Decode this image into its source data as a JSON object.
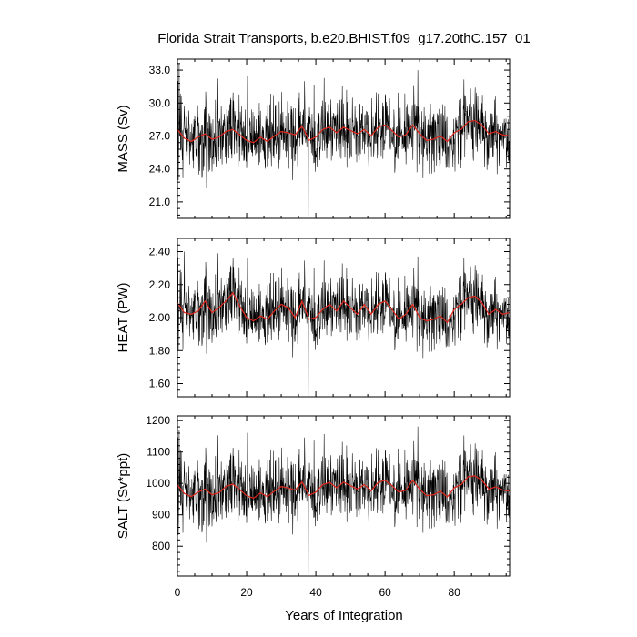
{
  "figure": {
    "title": "Florida Strait Transports, b.e20.BHIST.f09_g17.20thC.157_01",
    "xlabel": "Years of Integration"
  },
  "colors": {
    "raw_series": "#000000",
    "smoothed_series": "#e0271c",
    "frame": "#000000",
    "background": "#ffffff"
  },
  "chart_data": [
    {
      "type": "line",
      "ylabel": "MASS (Sv)",
      "xlim": [
        0,
        96
      ],
      "ylim": [
        19.5,
        34.0
      ],
      "xticks": [
        0,
        20,
        40,
        60,
        80
      ],
      "xtick_labels": [
        "",
        "",
        "",
        "",
        ""
      ],
      "yticks": [
        21.0,
        24.0,
        27.0,
        30.0,
        33.0
      ],
      "ytick_labels": [
        "21.0",
        "24.0",
        "27.0",
        "30.0",
        "33.0"
      ],
      "grid": false,
      "series": [
        {
          "style": "raw-monthly",
          "x_start": 0,
          "x_step": 0.0833,
          "n": 1152,
          "mean": 27.0,
          "stdev": 1.6,
          "minimum": {
            "x": 37.8,
            "y": 19.7
          },
          "maximum": {
            "x": 0.5,
            "y": 33.6
          }
        },
        {
          "style": "smoothed",
          "x": [
            0,
            2,
            4,
            6,
            8,
            10,
            12,
            14,
            16,
            18,
            20,
            22,
            24,
            26,
            28,
            30,
            32,
            34,
            36,
            38,
            40,
            42,
            44,
            46,
            48,
            50,
            52,
            54,
            56,
            58,
            60,
            62,
            64,
            66,
            68,
            70,
            72,
            74,
            76,
            78,
            80,
            82,
            84,
            86,
            88,
            90,
            92,
            94,
            96
          ],
          "y": [
            27.6,
            26.8,
            26.5,
            26.9,
            27.2,
            26.7,
            26.9,
            27.4,
            27.6,
            27.1,
            26.6,
            26.4,
            26.9,
            26.5,
            27.0,
            27.4,
            27.3,
            27.1,
            27.9,
            26.6,
            26.9,
            27.6,
            27.8,
            27.3,
            27.8,
            27.5,
            27.2,
            27.6,
            27.0,
            27.8,
            28.0,
            27.5,
            26.9,
            27.1,
            28.0,
            27.2,
            26.6,
            26.7,
            27.0,
            26.5,
            27.3,
            27.6,
            28.3,
            28.4,
            28.0,
            27.2,
            27.4,
            27.1,
            27.0
          ]
        }
      ]
    },
    {
      "type": "line",
      "ylabel": "HEAT (PW)",
      "xlim": [
        0,
        96
      ],
      "ylim": [
        1.52,
        2.48
      ],
      "xticks": [
        0,
        20,
        40,
        60,
        80
      ],
      "xtick_labels": [
        "",
        "",
        "",
        "",
        ""
      ],
      "yticks": [
        1.6,
        1.8,
        2.0,
        2.2,
        2.4
      ],
      "ytick_labels": [
        "1.60",
        "1.80",
        "2.00",
        "2.20",
        "2.40"
      ],
      "grid": false,
      "series": [
        {
          "style": "raw-monthly",
          "x_start": 0,
          "x_step": 0.0833,
          "n": 1152,
          "mean": 2.04,
          "stdev": 0.1,
          "minimum": {
            "x": 37.8,
            "y": 1.53
          },
          "maximum": {
            "x": 2.0,
            "y": 2.4
          }
        },
        {
          "style": "smoothed",
          "x": [
            0,
            2,
            4,
            6,
            8,
            10,
            12,
            14,
            16,
            18,
            20,
            22,
            24,
            26,
            28,
            30,
            32,
            34,
            36,
            38,
            40,
            42,
            44,
            46,
            48,
            50,
            52,
            54,
            56,
            58,
            60,
            62,
            64,
            66,
            68,
            70,
            72,
            74,
            76,
            78,
            80,
            82,
            84,
            86,
            88,
            90,
            92,
            94,
            96
          ],
          "y": [
            2.09,
            2.03,
            2.02,
            2.04,
            2.1,
            2.03,
            2.06,
            2.1,
            2.15,
            2.07,
            2.0,
            1.98,
            2.01,
            1.99,
            2.04,
            2.08,
            2.06,
            2.0,
            2.1,
            1.99,
            2.0,
            2.05,
            2.08,
            2.04,
            2.1,
            2.06,
            2.02,
            2.08,
            2.02,
            2.08,
            2.1,
            2.05,
            1.99,
            2.02,
            2.08,
            2.0,
            1.98,
            1.99,
            2.01,
            1.97,
            2.05,
            2.08,
            2.12,
            2.13,
            2.09,
            2.02,
            2.05,
            2.02,
            2.03
          ]
        }
      ]
    },
    {
      "type": "line",
      "ylabel": "SALT (Sv*ppt)",
      "xlim": [
        0,
        96
      ],
      "ylim": [
        705,
        1215
      ],
      "xticks": [
        0,
        20,
        40,
        60,
        80
      ],
      "xtick_labels": [
        "0",
        "20",
        "40",
        "60",
        "80"
      ],
      "yticks": [
        800,
        900,
        1000,
        1100,
        1200
      ],
      "ytick_labels": [
        "800",
        "900",
        "1000",
        "1100",
        "1200"
      ],
      "grid": false,
      "series": [
        {
          "style": "raw-monthly",
          "x_start": 0,
          "x_step": 0.0833,
          "n": 1152,
          "mean": 980,
          "stdev": 55,
          "minimum": {
            "x": 37.8,
            "y": 712
          },
          "maximum": {
            "x": 0.5,
            "y": 1170
          }
        },
        {
          "style": "smoothed",
          "x": [
            0,
            2,
            4,
            6,
            8,
            10,
            12,
            14,
            16,
            18,
            20,
            22,
            24,
            26,
            28,
            30,
            32,
            34,
            36,
            38,
            40,
            42,
            44,
            46,
            48,
            50,
            52,
            54,
            56,
            58,
            60,
            62,
            64,
            66,
            68,
            70,
            72,
            74,
            76,
            78,
            80,
            82,
            84,
            86,
            88,
            90,
            92,
            94,
            96
          ],
          "y": [
            995,
            968,
            958,
            972,
            982,
            964,
            970,
            990,
            998,
            980,
            961,
            953,
            970,
            958,
            975,
            990,
            986,
            978,
            1005,
            962,
            972,
            996,
            1003,
            986,
            1004,
            993,
            982,
            996,
            976,
            1003,
            1010,
            993,
            972,
            978,
            1010,
            982,
            961,
            964,
            975,
            957,
            986,
            996,
            1021,
            1024,
            1010,
            982,
            989,
            979,
            975
          ]
        }
      ]
    }
  ]
}
